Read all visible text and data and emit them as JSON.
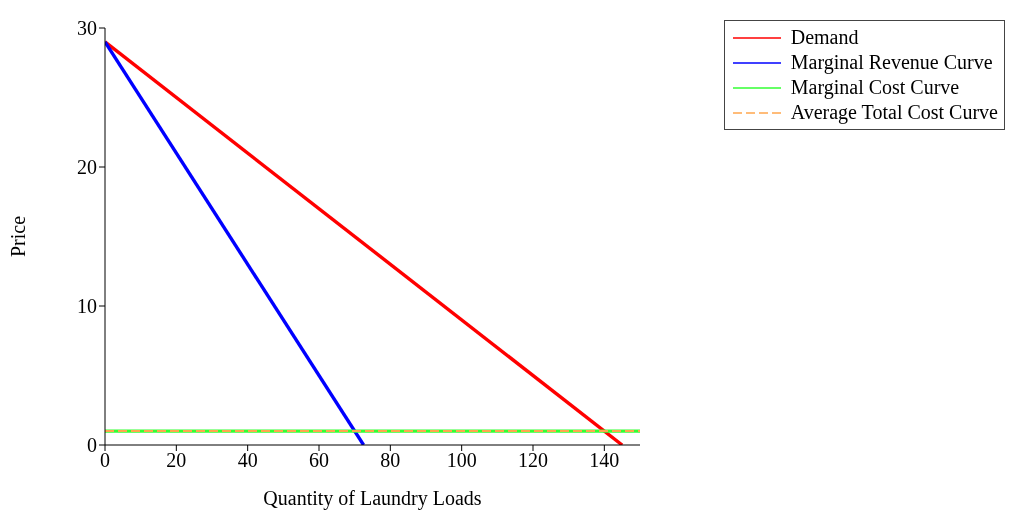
{
  "chart_data": {
    "type": "line",
    "xlabel": "Quantity of Laundry Loads",
    "ylabel": "Price",
    "xlim": [
      0,
      150
    ],
    "ylim": [
      0,
      30
    ],
    "xticks": [
      0,
      20,
      40,
      60,
      80,
      100,
      120,
      140
    ],
    "yticks": [
      0,
      10,
      20,
      30
    ],
    "grid": false,
    "legend": "top right",
    "marker": "none",
    "series": [
      {
        "name": "Demand",
        "color": "#ff0000",
        "x": [
          0,
          145
        ],
        "values": [
          29,
          0
        ]
      },
      {
        "name": "Marginal Revenue Curve",
        "color": "#0000ff",
        "x": [
          0,
          72.5
        ],
        "values": [
          29,
          0
        ]
      },
      {
        "name": "Marginal Cost Curve",
        "color": "#33ff33",
        "x": [
          0,
          150
        ],
        "values": [
          1,
          1
        ]
      },
      {
        "name": "Average Total Cost Curve",
        "color": "#ffa64d",
        "line_style": "dashed",
        "x": [
          0,
          150
        ],
        "values": [
          1,
          1
        ]
      }
    ]
  }
}
